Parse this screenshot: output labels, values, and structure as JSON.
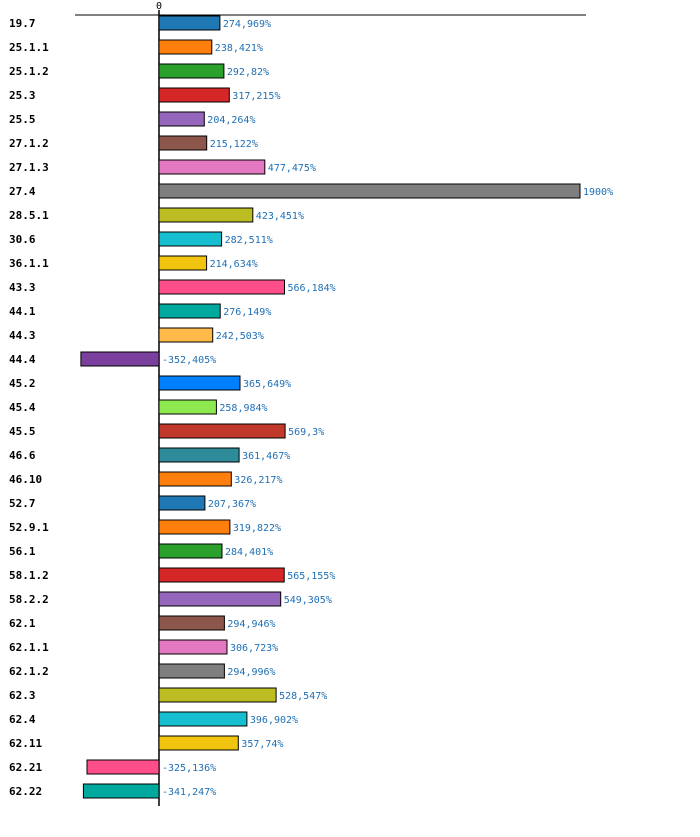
{
  "chart_data": {
    "type": "bar",
    "orientation": "horizontal",
    "categories": [
      "19.7",
      "25.1.1",
      "25.1.2",
      "25.3",
      "25.5",
      "27.1.2",
      "27.1.3",
      "27.4",
      "28.5.1",
      "30.6",
      "36.1.1",
      "43.3",
      "44.1",
      "44.3",
      "44.4",
      "45.2",
      "45.4",
      "45.5",
      "46.6",
      "46.10",
      "52.7",
      "52.9.1",
      "56.1",
      "58.1.2",
      "58.2.2",
      "62.1",
      "62.1.1",
      "62.1.2",
      "62.3",
      "62.4",
      "62.11",
      "62.21",
      "62.22"
    ],
    "values": [
      274.969,
      238.421,
      292.82,
      317.215,
      204.264,
      215.122,
      477.475,
      1900,
      423.451,
      282.511,
      214.634,
      566.184,
      276.149,
      242.503,
      -352.405,
      365.649,
      258.984,
      569.3,
      361.467,
      326.217,
      207.367,
      319.822,
      284.401,
      565.155,
      549.305,
      294.946,
      306.723,
      294.996,
      528.547,
      396.902,
      357.74,
      -325.136,
      -341.247
    ],
    "value_labels": [
      "274,969%",
      "238,421%",
      "292,82%",
      "317,215%",
      "204,264%",
      "215,122%",
      "477,475%",
      "1900%",
      "423,451%",
      "282,511%",
      "214,634%",
      "566,184%",
      "276,149%",
      "242,503%",
      "-352,405%",
      "365,649%",
      "258,984%",
      "569,3%",
      "361,467%",
      "326,217%",
      "207,367%",
      "319,822%",
      "284,401%",
      "565,155%",
      "549,305%",
      "294,946%",
      "306,723%",
      "294,996%",
      "528,547%",
      "396,902%",
      "357,74%",
      "-325,136%",
      "-341,247%"
    ],
    "colors": [
      "#1f77b4",
      "#ff7f0e",
      "#2ca02c",
      "#d62728",
      "#9467bd",
      "#8c564b",
      "#e377c2",
      "#7f7f7f",
      "#bcbd22",
      "#17becf",
      "#f1c40f",
      "#ff4f8b",
      "#00a99d",
      "#ffba49",
      "#7b3f9e",
      "#0080ff",
      "#8ee84f",
      "#c0392b",
      "#2e8b9a",
      "#ff7f0e",
      "#1f77b4",
      "#ff7f0e",
      "#2ca02c",
      "#d62728",
      "#9467bd",
      "#8c564b",
      "#e377c2",
      "#7f7f7f",
      "#bcbd22",
      "#17becf",
      "#f1c40f",
      "#ff4f8b",
      "#00a99d"
    ],
    "zero_tick_label": "0",
    "xlim": [
      -375,
      1925
    ],
    "grid": false,
    "title": "",
    "xlabel": "",
    "ylabel": ""
  }
}
